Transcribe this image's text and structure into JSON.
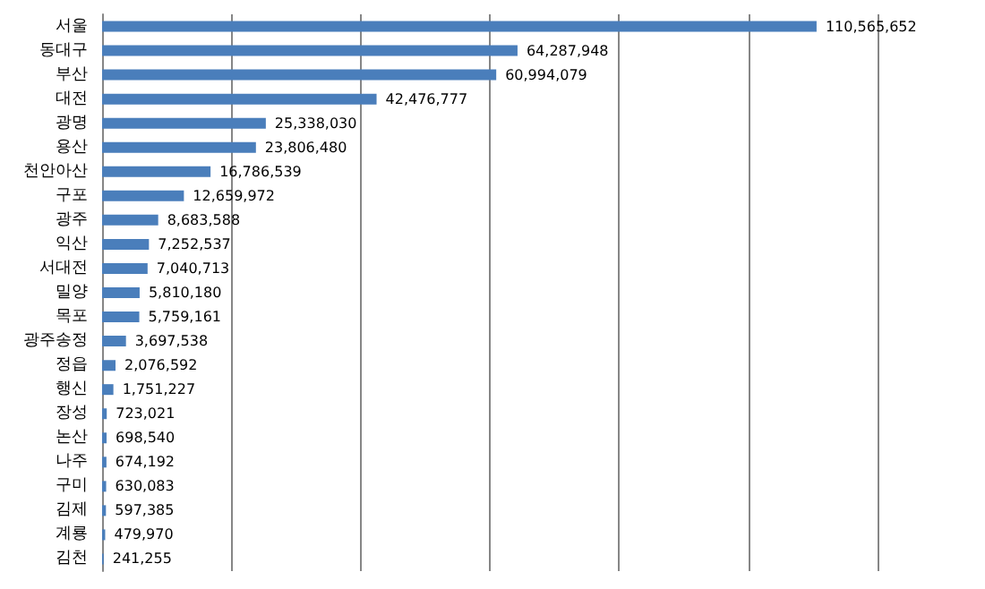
{
  "chart_data": {
    "type": "bar",
    "orientation": "horizontal",
    "categories": [
      "서울",
      "동대구",
      "부산",
      "대전",
      "광명",
      "용산",
      "천안아산",
      "구포",
      "광주",
      "익산",
      "서대전",
      "밀양",
      "목포",
      "광주송정",
      "정읍",
      "행신",
      "장성",
      "논산",
      "나주",
      "구미",
      "김제",
      "계룡",
      "김천"
    ],
    "values": [
      110565652,
      64287948,
      60994079,
      42476777,
      25338030,
      23806480,
      16786539,
      12659972,
      8683588,
      7252537,
      7040713,
      5810180,
      5759161,
      3697538,
      2076592,
      1751227,
      723021,
      698540,
      674192,
      630083,
      597385,
      479970,
      241255
    ],
    "value_labels": [
      "110,565,652",
      "64,287,948",
      "60,994,079",
      "42,476,777",
      "25,338,030",
      "23,806,480",
      "16,786,539",
      "12,659,972",
      "8,683,588",
      "7,252,537",
      "7,040,713",
      "5,810,180",
      "5,759,161",
      "3,697,538",
      "2,076,592",
      "1,751,227",
      "723,021",
      "698,540",
      "674,192",
      "630,083",
      "597,385",
      "479,970",
      "241,255"
    ],
    "color": "#4a7ebb",
    "grid": "x",
    "tick_labels": "y"
  }
}
